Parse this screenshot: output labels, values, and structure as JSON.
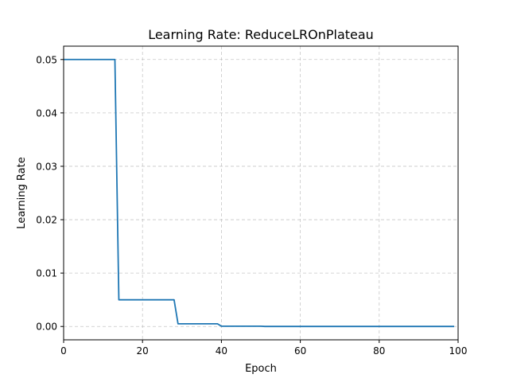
{
  "chart_data": {
    "type": "line",
    "title": "Learning Rate: ReduceLROnPlateau",
    "xlabel": "Epoch",
    "ylabel": "Learning Rate",
    "xlim": [
      0,
      100
    ],
    "ylim": [
      -0.0025,
      0.0525
    ],
    "xticks": [
      0,
      20,
      40,
      60,
      80,
      100
    ],
    "xtick_labels": [
      "0",
      "20",
      "40",
      "60",
      "80",
      "100"
    ],
    "yticks": [
      0.0,
      0.01,
      0.02,
      0.03,
      0.04,
      0.05
    ],
    "ytick_labels": [
      "0.00",
      "0.01",
      "0.02",
      "0.03",
      "0.04",
      "0.05"
    ],
    "grid": true,
    "series": [
      {
        "color": "#1f77b4",
        "x": [
          0,
          13,
          14,
          28,
          29,
          39,
          40,
          50,
          51,
          99
        ],
        "values": [
          0.05,
          0.05,
          0.005,
          0.005,
          0.0005,
          0.0005,
          5e-05,
          5e-05,
          5e-06,
          5e-06
        ]
      }
    ]
  }
}
